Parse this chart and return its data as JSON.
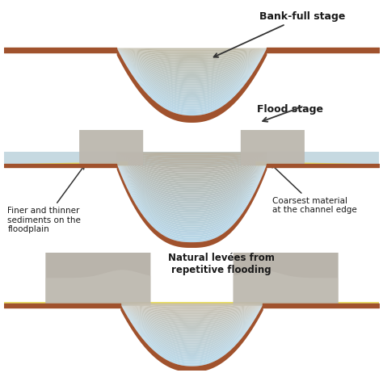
{
  "bg_color": "#ffffff",
  "channel_brown": "#A0522D",
  "water_light": "#b8d8e8",
  "water_mid": "#c8dde8",
  "water_bottom": "#c0bfb0",
  "flood_water": "#b4cdd8",
  "sediment_tan": "#b8a888",
  "levee_yellow": "#e8dc50",
  "levee_yellow2": "#d4c060",
  "gravel_gray": "#b0aaa0",
  "gravel_light": "#c8c4bc",
  "panel1_label": "Bank-full stage",
  "panel2_label": "Flood stage",
  "panel3_label": "Natural levées from\nrepetitive flooding",
  "label_left": "Finer and thinner\nsediments on the\nfloodplain",
  "label_right": "Coarsest material\nat the channel edge",
  "text_color": "#1a1a1a",
  "arrow_color": "#333333"
}
